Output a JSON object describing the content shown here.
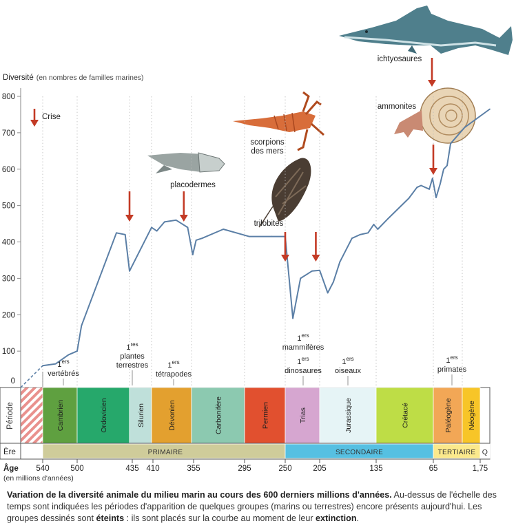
{
  "chart_data": {
    "type": "line",
    "ylabel_main": "Diversité",
    "ylabel_unit": "(en nombres de familles marines)",
    "y_ticks": [
      0,
      100,
      200,
      300,
      400,
      500,
      600,
      700,
      800
    ],
    "ylim": [
      0,
      800
    ],
    "grid": "vertical dotted lines at period boundaries",
    "line_color": "#5b7fa6",
    "pre_segment": {
      "x": [
        560,
        540
      ],
      "y": [
        0,
        60
      ],
      "style": "dashed"
    },
    "series": [
      {
        "x": [
          540,
          525,
          510,
          500,
          495,
          455,
          445,
          440,
          415,
          405,
          395,
          380,
          365,
          357,
          352,
          345,
          320,
          290,
          265,
          250,
          240,
          230,
          215,
          205,
          195,
          188,
          180,
          165,
          155,
          145,
          138,
          133,
          120,
          95,
          85,
          80,
          70,
          66,
          61,
          55,
          50,
          45,
          40,
          20,
          0
        ],
        "y": [
          60,
          65,
          90,
          100,
          170,
          425,
          420,
          320,
          440,
          430,
          455,
          460,
          440,
          365,
          405,
          410,
          435,
          415,
          415,
          415,
          190,
          300,
          320,
          322,
          260,
          290,
          345,
          410,
          420,
          425,
          448,
          435,
          465,
          520,
          550,
          555,
          545,
          575,
          522,
          560,
          600,
          610,
          670,
          715,
          765
        ]
      }
    ],
    "crisis_arrows_age": [
      440,
      370,
      250,
      210,
      65
    ],
    "legend_label": "Crise",
    "annotations": [
      {
        "id": "vertebres",
        "sup": "ers",
        "lines": [
          "vertébrés"
        ]
      },
      {
        "id": "plantes",
        "sup": "res",
        "lines": [
          "plantes",
          "terrestres"
        ]
      },
      {
        "id": "tetrapodes",
        "sup": "ers",
        "lines": [
          "tétrapodes"
        ]
      },
      {
        "id": "mammiferes",
        "sup": "ers",
        "lines": [
          "mammifères"
        ]
      },
      {
        "id": "dinosaures",
        "sup": "ers",
        "lines": [
          "dinosaures"
        ]
      },
      {
        "id": "oiseaux",
        "sup": "ers",
        "lines": [
          "oiseaux"
        ]
      },
      {
        "id": "primates",
        "sup": "ers",
        "lines": [
          "primates"
        ]
      }
    ],
    "num_one": "1",
    "extinct_groups": {
      "ichtyosaures": "ichtyosaures",
      "ammonites": "ammonites",
      "scorpions": [
        "scorpions",
        "des mers"
      ],
      "trilobites": "trilobites",
      "placodermes": "placodermes"
    },
    "row_labels": {
      "periode": "Période",
      "ere": "Ère",
      "age_main": "Âge",
      "age_sub": "(en millions d'années)"
    },
    "periods": [
      {
        "name": "Cambrien",
        "start": 540,
        "end": 500,
        "color": "#5fa040"
      },
      {
        "name": "Ordovicien",
        "start": 500,
        "end": 440,
        "color": "#26a86b"
      },
      {
        "name": "Silurien",
        "start": 440,
        "end": 415,
        "color": "#bfe0da"
      },
      {
        "name": "Dévonien",
        "start": 415,
        "end": 360,
        "color": "#e3a02f"
      },
      {
        "name": "Carbonifère",
        "start": 360,
        "end": 295,
        "color": "#8cc9b0"
      },
      {
        "name": "Permien",
        "start": 295,
        "end": 250,
        "color": "#e1502f"
      },
      {
        "name": "Trias",
        "start": 250,
        "end": 205,
        "color": "#d6a6d0"
      },
      {
        "name": "Jurassique",
        "start": 205,
        "end": 135,
        "color": "#e6f4f6"
      },
      {
        "name": "Crétacé",
        "start": 135,
        "end": 65,
        "color": "#bedd46"
      },
      {
        "name": "Paléogène",
        "start": 65,
        "end": 23,
        "color": "#f2a756"
      },
      {
        "name": "Néogène",
        "start": 23,
        "end": 1.75,
        "color": "#f7c528"
      }
    ],
    "eras": [
      {
        "name": "PRIMAIRE",
        "start": 540,
        "end": 250,
        "color": "#cfcc9a"
      },
      {
        "name": "SECONDAIRE",
        "start": 250,
        "end": 65,
        "color": "#56c0e2"
      },
      {
        "name": "TERTIAIRE",
        "start": 65,
        "end": 1.75,
        "color": "#fbe98c"
      },
      {
        "name": "Q",
        "start": 1.75,
        "end": 0,
        "color": "#ffffff"
      }
    ],
    "age_ticks": [
      "540",
      "500",
      "435",
      "410",
      "355",
      "295",
      "250",
      "205",
      "135",
      "65",
      "1,75"
    ]
  },
  "caption": {
    "lead": "Variation de la diversité animale du milieu marin au cours des 600 derniers millions d'années.",
    "text1": " Au-dessus de l'échelle des temps sont indiquées les périodes d'apparition de quelques groupes (marins ou terrestres) encore présents aujourd'hui. Les groupes dessinés sont ",
    "bold1": "éteints",
    "text2": " : ils sont placés sur la courbe au moment de leur ",
    "bold2": "extinction",
    "text3": "."
  }
}
